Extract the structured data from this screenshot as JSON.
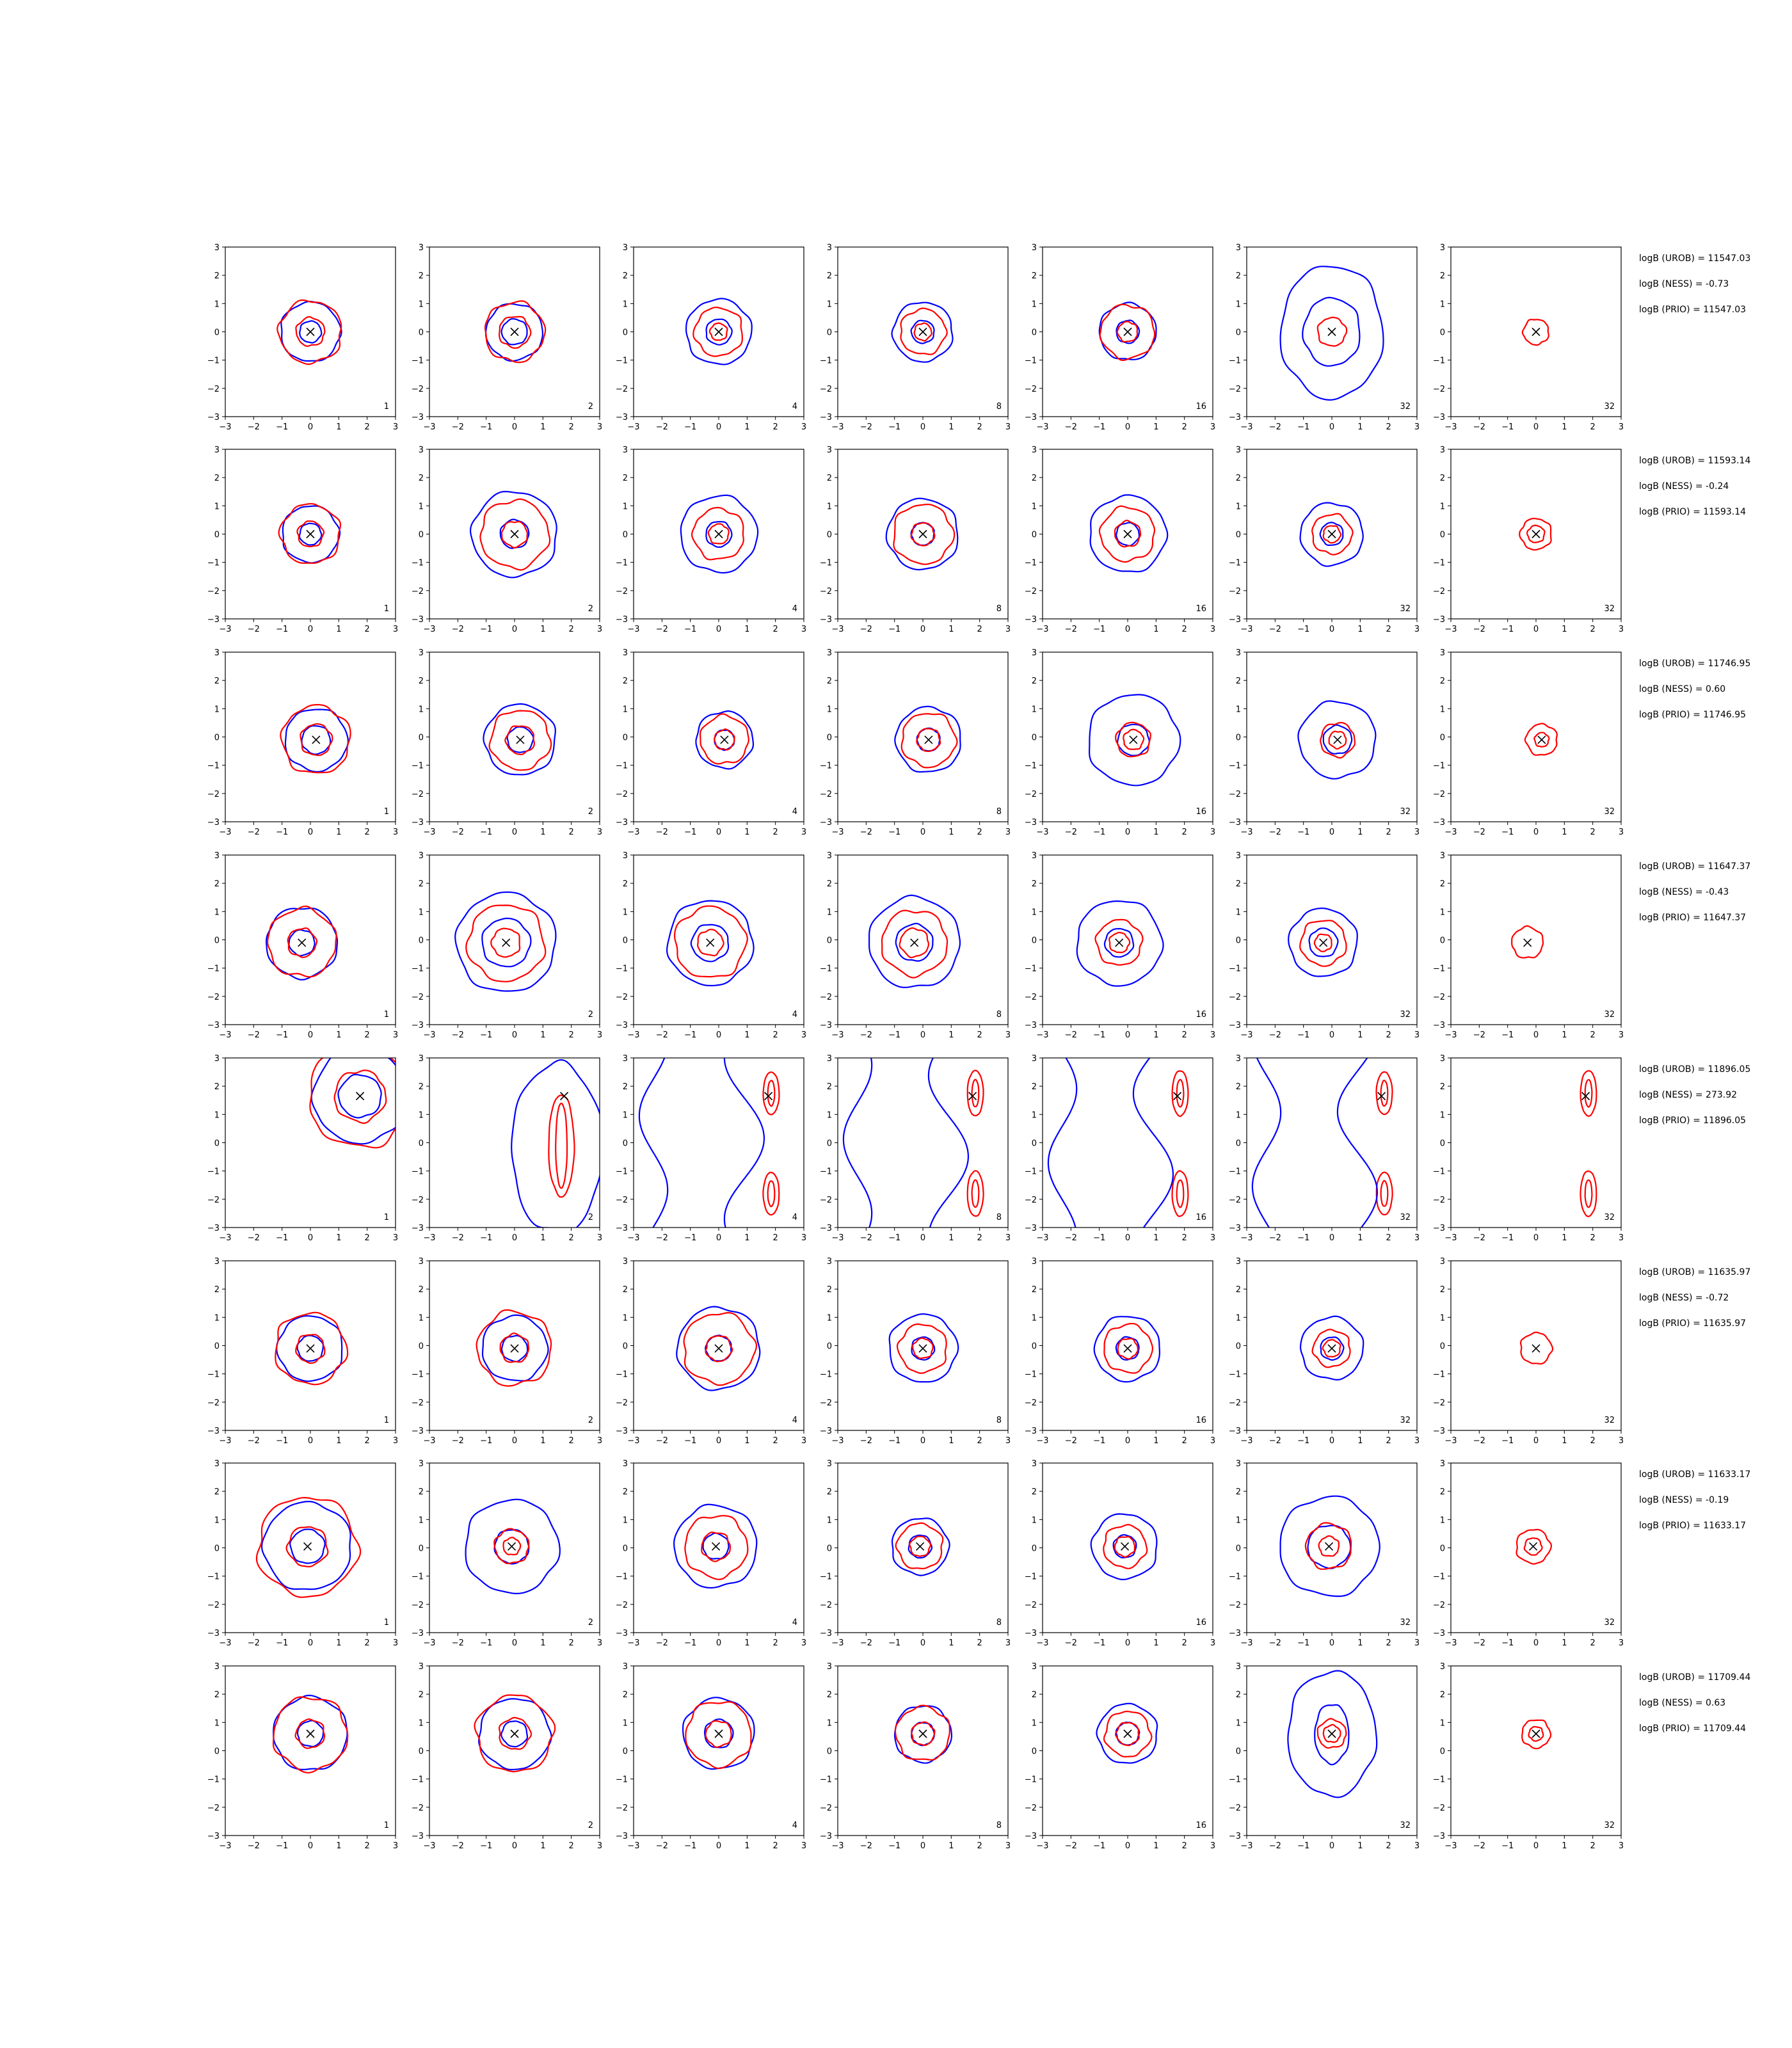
{
  "chart_data": {
    "type": "contour",
    "grid": {
      "rows": 8,
      "cols": 7
    },
    "axis": {
      "xlim": [
        -3,
        3
      ],
      "ylim": [
        -3,
        3
      ],
      "ticks": [
        -3,
        -2,
        -1,
        0,
        1,
        2,
        3
      ],
      "tick_labels": [
        "−3",
        "−2",
        "−1",
        "0",
        "1",
        "2",
        "3"
      ]
    },
    "k_labels": [
      "1",
      "2",
      "4",
      "8",
      "16",
      "32",
      "32"
    ],
    "colors": {
      "outer": "#0000ff",
      "inner": "#ff0000",
      "marker": "#000000"
    },
    "rows": [
      {
        "marker": [
          0,
          0
        ],
        "stats": [
          "logB (UROB) = 11547.03",
          "logB (NESS) = -0.73",
          "logB (PRIO) = 11547.03"
        ],
        "panels": [
          {
            "blue": [
              1.05,
              0.38
            ],
            "red": [
              1.1,
              0.5
            ]
          },
          {
            "blue": [
              1.0,
              0.45
            ],
            "red": [
              1.05,
              0.55
            ]
          },
          {
            "blue": [
              1.15,
              0.45
            ],
            "red": [
              0.85,
              0.3
            ]
          },
          {
            "blue": [
              1.05,
              0.4
            ],
            "red": [
              0.8,
              0.3
            ]
          },
          {
            "blue": [
              1.0,
              0.4
            ],
            "red": [
              0.95,
              0.35
            ]
          },
          {
            "blue": [
              1.8,
              1.0
            ],
            "blue_sy": [
              2.35,
              1.2
            ],
            "red": [
              0.5
            ]
          },
          {
            "blue": [],
            "red": [
              0.45
            ]
          }
        ]
      },
      {
        "marker": [
          0,
          0
        ],
        "stats": [
          "logB (UROB) = 11593.14",
          "logB (NESS) = -0.24",
          "logB (PRIO) = 11593.14"
        ],
        "panels": [
          {
            "blue": [
              1.0,
              0.38
            ],
            "red": [
              1.05,
              0.45
            ]
          },
          {
            "blue": [
              1.5,
              0.5
            ],
            "red": [
              1.2,
              0.45
            ]
          },
          {
            "blue": [
              1.35,
              0.45
            ],
            "red": [
              0.9,
              0.35
            ]
          },
          {
            "blue": [
              1.25,
              0.4
            ],
            "red": [
              1.05,
              0.4
            ]
          },
          {
            "blue": [
              1.35,
              0.4
            ],
            "red": [
              0.95,
              0.45
            ]
          },
          {
            "blue": [
              1.1,
              0.4
            ],
            "red": [
              0.7,
              0.3
            ]
          },
          {
            "blue": [],
            "red": [
              0.55,
              0.3
            ]
          }
        ]
      },
      {
        "marker": [
          0.2,
          -0.1
        ],
        "stats": [
          "logB (UROB) = 11746.95",
          "logB (NESS) = 0.60",
          "logB (PRIO) = 11746.95"
        ],
        "panels": [
          {
            "blue": [
              1.1,
              0.5
            ],
            "red": [
              1.2,
              0.55
            ]
          },
          {
            "blue": [
              1.25,
              0.45
            ],
            "red": [
              1.05,
              0.5
            ]
          },
          {
            "blue": [
              1.0,
              0.35
            ],
            "red": [
              0.85,
              0.35
            ]
          },
          {
            "blue": [
              1.15,
              0.4
            ],
            "red": [
              0.95,
              0.4
            ]
          },
          {
            "blue": [
              1.6,
              0.55
            ],
            "red": [
              0.6,
              0.35
            ]
          },
          {
            "blue": [
              1.35,
              0.5
            ],
            "red": [
              0.6,
              0.3
            ]
          },
          {
            "blue": [],
            "red": [
              0.55,
              0.25
            ]
          }
        ]
      },
      {
        "marker": [
          -0.3,
          -0.1
        ],
        "stats": [
          "logB (UROB) = 11647.37",
          "logB (NESS) = -0.43",
          "logB (PRIO) = 11647.37"
        ],
        "panels": [
          {
            "blue": [
              1.25,
              0.45
            ],
            "red": [
              1.2,
              0.5
            ]
          },
          {
            "blue": [
              1.75,
              0.85
            ],
            "red": [
              1.35,
              0.5
            ]
          },
          {
            "blue": [
              1.5,
              0.65
            ],
            "red": [
              1.25,
              0.45
            ]
          },
          {
            "blue": [
              1.6,
              0.65
            ],
            "red": [
              1.15,
              0.5
            ]
          },
          {
            "blue": [
              1.5,
              0.5
            ],
            "red": [
              0.8,
              0.35
            ]
          },
          {
            "blue": [
              1.2,
              0.5
            ],
            "red": [
              0.8,
              0.3
            ]
          },
          {
            "blue": [],
            "red": [
              0.55
            ]
          }
        ]
      },
      {
        "marker": [
          1.75,
          1.65
        ],
        "stats": [
          "logB (UROB) = 11896.05",
          "logB (NESS) = 273.92",
          "logB (PRIO) = 11896.05"
        ],
        "panels": [
          {
            "blue": [
              1.65,
              0.75
            ],
            "red": [
              1.8,
              0.9
            ]
          },
          {
            "blue": [],
            "red": []
          },
          {
            "blue": [],
            "red": []
          },
          {
            "blue": [],
            "red": []
          },
          {
            "blue": [],
            "red": []
          },
          {
            "blue": [],
            "red": []
          },
          {
            "blue": [],
            "red": []
          }
        ]
      },
      {
        "marker": [
          0,
          -0.1
        ],
        "stats": [
          "logB (UROB) = 11635.97",
          "logB (NESS) = -0.72",
          "logB (PRIO) = 11635.97"
        ],
        "panels": [
          {
            "blue": [
              1.15,
              0.45
            ],
            "red": [
              1.25,
              0.5
            ]
          },
          {
            "blue": [
              1.15,
              0.45
            ],
            "red": [
              1.3,
              0.5
            ]
          },
          {
            "blue": [
              1.45,
              0.45
            ],
            "red": [
              1.25,
              0.45
            ]
          },
          {
            "blue": [
              1.2,
              0.4
            ],
            "red": [
              0.85,
              0.35
            ]
          },
          {
            "blue": [
              1.15,
              0.4
            ],
            "red": [
              0.85,
              0.35
            ]
          },
          {
            "blue": [
              1.1,
              0.4
            ],
            "red": [
              0.65,
              0.3
            ]
          },
          {
            "blue": [],
            "red": [
              0.55
            ]
          }
        ]
      },
      {
        "marker": [
          -0.1,
          0.05
        ],
        "stats": [
          "logB (UROB) = 11633.17",
          "logB (NESS) = -0.19",
          "logB (PRIO) = 11633.17"
        ],
        "panels": [
          {
            "blue": [
              1.55,
              0.6
            ],
            "red": [
              1.75,
              0.7
            ]
          },
          {
            "blue": [
              1.65,
              0.6
            ],
            "red": [
              0.6,
              0.3
            ]
          },
          {
            "blue": [
              1.45,
              0.45
            ],
            "red": [
              1.1,
              0.5
            ]
          },
          {
            "blue": [
              1.0,
              0.4
            ],
            "red": [
              0.8,
              0.35
            ]
          },
          {
            "blue": [
              1.15,
              0.4
            ],
            "red": [
              0.75,
              0.35
            ]
          },
          {
            "blue": [
              1.75,
              0.75
            ],
            "red": [
              0.8,
              0.35
            ]
          },
          {
            "blue": [],
            "red": [
              0.6,
              0.3
            ]
          }
        ]
      },
      {
        "marker": [
          0,
          0.6
        ],
        "stats": [
          "logB (UROB) = 11709.44",
          "logB (NESS) = 0.63",
          "logB (PRIO) = 11709.44"
        ],
        "panels": [
          {
            "blue": [
              1.3,
              0.45
            ],
            "red": [
              1.3,
              0.5
            ]
          },
          {
            "blue": [
              1.25,
              0.45
            ],
            "red": [
              1.35,
              0.55
            ]
          },
          {
            "blue": [
              1.25,
              0.5
            ],
            "red": [
              1.15,
              0.45
            ]
          },
          {
            "blue": [
              1.0,
              0.4
            ],
            "red": [
              0.95,
              0.4
            ]
          },
          {
            "blue": [
              1.05,
              0.4
            ],
            "red": [
              0.8,
              0.4
            ]
          },
          {
            "blue": [
              1.55,
              0.6
            ],
            "blue_sy": [
              2.2,
              1.05
            ],
            "red": [
              0.5,
              0.3
            ]
          },
          {
            "blue": [],
            "red": [
              0.5,
              0.25
            ]
          }
        ]
      }
    ]
  }
}
